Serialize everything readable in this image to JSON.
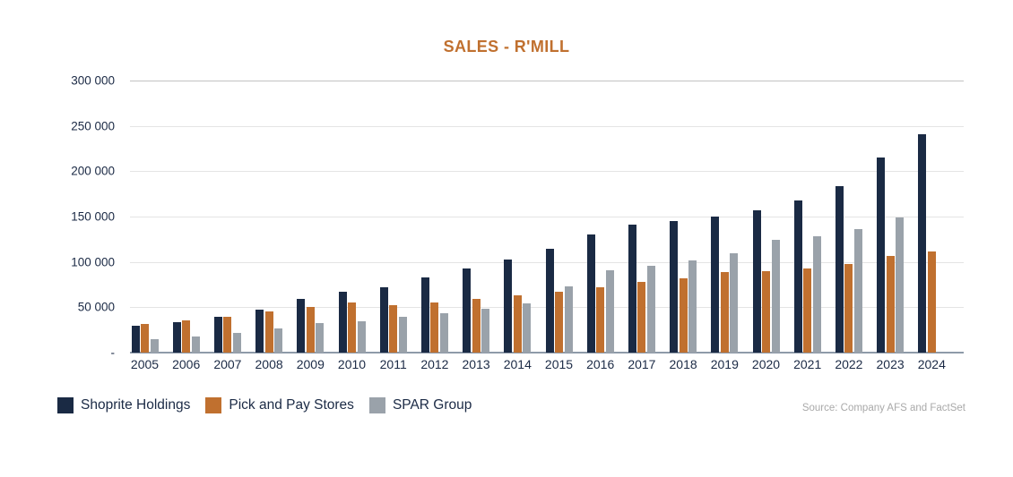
{
  "title": "SALES - R'MILL",
  "source": "Source: Company AFS and FactSet",
  "colors": {
    "shoprite": "#1a2a44",
    "pick_n_pay": "#c0702f",
    "spar": "#9aa2aa",
    "title_text": "#c0702f",
    "axis_text": "#1b2a45",
    "gridline": "#e4e4e4",
    "top_gridline": "#c2c2c2",
    "axis_line": "#8e9aa9",
    "source_text": "#a9a9a9"
  },
  "chart_data": {
    "type": "bar",
    "title": "SALES - R'MILL",
    "xlabel": "",
    "ylabel": "",
    "ylim": [
      0,
      300000
    ],
    "ytick_step": 50000,
    "ytick_values": [
      0,
      50000,
      100000,
      150000,
      200000,
      250000,
      300000
    ],
    "ytick_labels": [
      "-",
      "50 000",
      "100 000",
      "150 000",
      "200 000",
      "250 000",
      "300 000"
    ],
    "grid": true,
    "legend_position": "bottom-left",
    "categories": [
      "2005",
      "2006",
      "2007",
      "2008",
      "2009",
      "2010",
      "2011",
      "2012",
      "2013",
      "2014",
      "2015",
      "2016",
      "2017",
      "2018",
      "2019",
      "2020",
      "2021",
      "2022",
      "2023",
      "2024"
    ],
    "series": [
      {
        "name": "Shoprite Holdings",
        "color": "#1a2a44",
        "values": [
          29500,
          33500,
          39000,
          47500,
          59500,
          67500,
          72500,
          82500,
          92500,
          102500,
          114000,
          130000,
          141000,
          145500,
          150500,
          157000,
          168000,
          184000,
          215000,
          240500
        ]
      },
      {
        "name": "Pick and Pay Stores",
        "color": "#c0702f",
        "values": [
          32000,
          35500,
          39500,
          45000,
          50000,
          55000,
          52000,
          55500,
          59500,
          63500,
          67000,
          72500,
          77500,
          81500,
          88500,
          89500,
          93000,
          98000,
          107000,
          112000
        ]
      },
      {
        "name": "SPAR Group",
        "color": "#9aa2aa",
        "values": [
          14500,
          17500,
          21500,
          26500,
          32500,
          35000,
          39000,
          43500,
          48000,
          54500,
          73500,
          90500,
          96000,
          101500,
          109500,
          124500,
          128500,
          136000,
          149500,
          null
        ]
      }
    ]
  }
}
